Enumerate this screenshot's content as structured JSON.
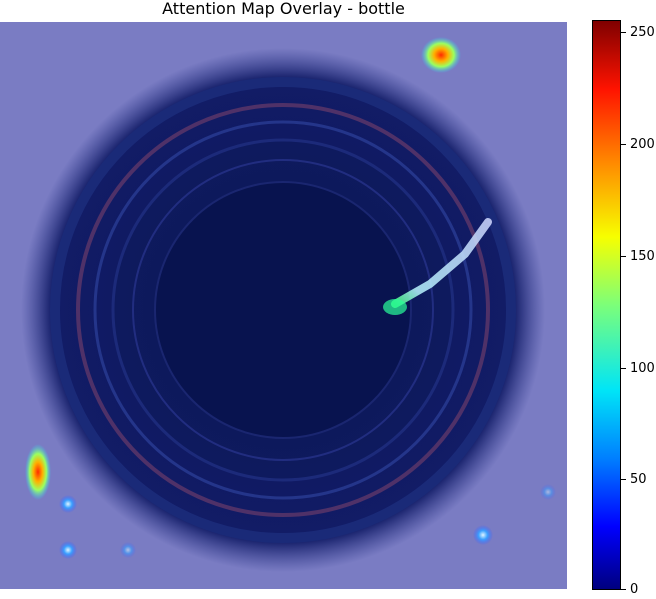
{
  "title": "Attention Map Overlay - bottle",
  "colorbar": {
    "colormap": "jet",
    "min": 0,
    "max": 255,
    "ticks": [
      "0",
      "50",
      "100",
      "150",
      "200",
      "250"
    ]
  },
  "colors": {
    "overlay_background": "#7a7cc3",
    "bottle_dark": "#0c1a5e",
    "low_attention": "#00007f",
    "high_attention": "#7f0000"
  }
}
